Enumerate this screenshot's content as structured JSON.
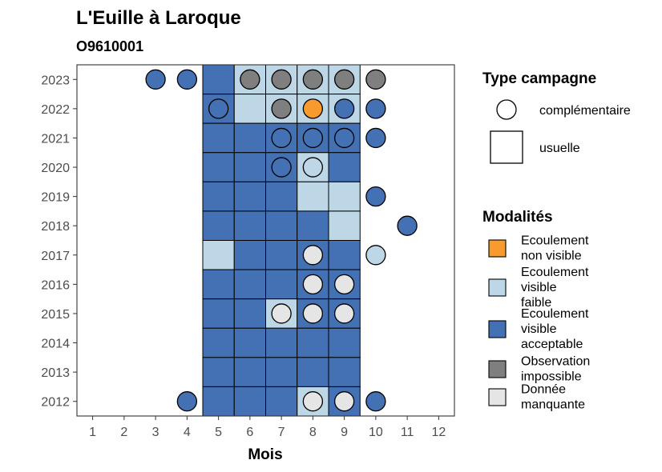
{
  "chart_data": {
    "type": "heatmap",
    "title": "L'Euille à Laroque",
    "subtitle": "O9610001",
    "xlabel": "Mois",
    "ylabel": "",
    "x_ticks": [
      1,
      2,
      3,
      4,
      5,
      6,
      7,
      8,
      9,
      10,
      11,
      12
    ],
    "y_ticks": [
      2012,
      2013,
      2014,
      2015,
      2016,
      2017,
      2018,
      2019,
      2020,
      2021,
      2022,
      2023
    ],
    "xlim": [
      0.5,
      12.5
    ],
    "ylim": [
      2011.5,
      2023.5
    ],
    "grid": false,
    "legend_position": "right",
    "colors": {
      "Ecoulement non visible": "#F89A2E",
      "Ecoulement visible faible": "#BDD7E7",
      "Ecoulement visible acceptable": "#4471B4",
      "Observation impossible": "#7F7F7F",
      "Donnée manquante": "#E5E5E5"
    },
    "legend_type": {
      "title": "Type campagne",
      "items": [
        {
          "label": "complémentaire",
          "shape": "circle"
        },
        {
          "label": "usuelle",
          "shape": "square"
        }
      ]
    },
    "legend_modalites": {
      "title": "Modalités",
      "items": [
        {
          "key": "Ecoulement non visible",
          "lines": [
            "Ecoulement",
            "non visible"
          ]
        },
        {
          "key": "Ecoulement visible faible",
          "lines": [
            "Ecoulement",
            "visible",
            "faible"
          ]
        },
        {
          "key": "Ecoulement visible acceptable",
          "lines": [
            "Ecoulement",
            "visible",
            "acceptable"
          ]
        },
        {
          "key": "Observation impossible",
          "lines": [
            "Observation",
            "impossible"
          ]
        },
        {
          "key": "Donnée manquante",
          "lines": [
            "Donnée",
            "manquante"
          ]
        }
      ]
    },
    "usuelle": [
      {
        "year": 2023,
        "months": [
          5,
          6,
          7,
          8,
          9
        ],
        "values": [
          "Ecoulement visible acceptable",
          "Ecoulement visible faible",
          "Ecoulement visible faible",
          "Ecoulement visible faible",
          "Ecoulement visible faible"
        ]
      },
      {
        "year": 2022,
        "months": [
          5,
          6,
          7,
          8,
          9
        ],
        "values": [
          "Ecoulement visible acceptable",
          "Ecoulement visible faible",
          "Ecoulement visible faible",
          "Ecoulement visible faible",
          "Ecoulement visible faible"
        ]
      },
      {
        "year": 2021,
        "months": [
          5,
          6,
          7,
          8,
          9
        ],
        "values": [
          "Ecoulement visible acceptable",
          "Ecoulement visible acceptable",
          "Ecoulement visible acceptable",
          "Ecoulement visible acceptable",
          "Ecoulement visible acceptable"
        ]
      },
      {
        "year": 2020,
        "months": [
          5,
          6,
          7,
          8,
          9
        ],
        "values": [
          "Ecoulement visible acceptable",
          "Ecoulement visible acceptable",
          "Ecoulement visible acceptable",
          "Ecoulement visible faible",
          "Ecoulement visible acceptable"
        ]
      },
      {
        "year": 2019,
        "months": [
          5,
          6,
          7,
          8,
          9
        ],
        "values": [
          "Ecoulement visible acceptable",
          "Ecoulement visible acceptable",
          "Ecoulement visible acceptable",
          "Ecoulement visible faible",
          "Ecoulement visible faible"
        ]
      },
      {
        "year": 2018,
        "months": [
          5,
          6,
          7,
          8,
          9
        ],
        "values": [
          "Ecoulement visible acceptable",
          "Ecoulement visible acceptable",
          "Ecoulement visible acceptable",
          "Ecoulement visible acceptable",
          "Ecoulement visible faible"
        ]
      },
      {
        "year": 2017,
        "months": [
          5,
          6,
          7,
          8,
          9
        ],
        "values": [
          "Ecoulement visible faible",
          "Ecoulement visible acceptable",
          "Ecoulement visible acceptable",
          "Ecoulement visible acceptable",
          "Ecoulement visible acceptable"
        ]
      },
      {
        "year": 2016,
        "months": [
          5,
          6,
          7,
          8,
          9
        ],
        "values": [
          "Ecoulement visible acceptable",
          "Ecoulement visible acceptable",
          "Ecoulement visible acceptable",
          "Ecoulement visible acceptable",
          "Ecoulement visible acceptable"
        ]
      },
      {
        "year": 2015,
        "months": [
          5,
          6,
          7,
          8,
          9
        ],
        "values": [
          "Ecoulement visible acceptable",
          "Ecoulement visible acceptable",
          "Ecoulement visible faible",
          "Ecoulement visible acceptable",
          "Ecoulement visible acceptable"
        ]
      },
      {
        "year": 2014,
        "months": [
          5,
          6,
          7,
          8,
          9
        ],
        "values": [
          "Ecoulement visible acceptable",
          "Ecoulement visible acceptable",
          "Ecoulement visible acceptable",
          "Ecoulement visible acceptable",
          "Ecoulement visible acceptable"
        ]
      },
      {
        "year": 2013,
        "months": [
          5,
          6,
          7,
          8,
          9
        ],
        "values": [
          "Ecoulement visible acceptable",
          "Ecoulement visible acceptable",
          "Ecoulement visible acceptable",
          "Ecoulement visible acceptable",
          "Ecoulement visible acceptable"
        ]
      },
      {
        "year": 2012,
        "months": [
          5,
          6,
          7,
          8,
          9
        ],
        "values": [
          "Ecoulement visible acceptable",
          "Ecoulement visible acceptable",
          "Ecoulement visible acceptable",
          "Ecoulement visible faible",
          "Ecoulement visible acceptable"
        ]
      }
    ],
    "complementaire": [
      {
        "year": 2023,
        "month": 3,
        "value": "Ecoulement visible acceptable"
      },
      {
        "year": 2023,
        "month": 4,
        "value": "Ecoulement visible acceptable"
      },
      {
        "year": 2023,
        "month": 6,
        "value": "Observation impossible"
      },
      {
        "year": 2023,
        "month": 7,
        "value": "Observation impossible"
      },
      {
        "year": 2023,
        "month": 8,
        "value": "Observation impossible"
      },
      {
        "year": 2023,
        "month": 9,
        "value": "Observation impossible"
      },
      {
        "year": 2023,
        "month": 10,
        "value": "Observation impossible"
      },
      {
        "year": 2022,
        "month": 5,
        "value": "Ecoulement visible acceptable"
      },
      {
        "year": 2022,
        "month": 7,
        "value": "Observation impossible"
      },
      {
        "year": 2022,
        "month": 8,
        "value": "Ecoulement non visible"
      },
      {
        "year": 2022,
        "month": 9,
        "value": "Ecoulement visible acceptable"
      },
      {
        "year": 2022,
        "month": 10,
        "value": "Ecoulement visible acceptable"
      },
      {
        "year": 2021,
        "month": 7,
        "value": "Ecoulement visible acceptable"
      },
      {
        "year": 2021,
        "month": 8,
        "value": "Ecoulement visible acceptable"
      },
      {
        "year": 2021,
        "month": 9,
        "value": "Ecoulement visible acceptable"
      },
      {
        "year": 2021,
        "month": 10,
        "value": "Ecoulement visible acceptable"
      },
      {
        "year": 2020,
        "month": 7,
        "value": "Ecoulement visible acceptable"
      },
      {
        "year": 2020,
        "month": 8,
        "value": "Ecoulement visible faible"
      },
      {
        "year": 2019,
        "month": 10,
        "value": "Ecoulement visible acceptable"
      },
      {
        "year": 2018,
        "month": 11,
        "value": "Ecoulement visible acceptable"
      },
      {
        "year": 2017,
        "month": 8,
        "value": "Donnée manquante"
      },
      {
        "year": 2017,
        "month": 10,
        "value": "Ecoulement visible faible"
      },
      {
        "year": 2016,
        "month": 8,
        "value": "Donnée manquante"
      },
      {
        "year": 2016,
        "month": 9,
        "value": "Donnée manquante"
      },
      {
        "year": 2015,
        "month": 7,
        "value": "Donnée manquante"
      },
      {
        "year": 2015,
        "month": 8,
        "value": "Donnée manquante"
      },
      {
        "year": 2015,
        "month": 9,
        "value": "Donnée manquante"
      },
      {
        "year": 2012,
        "month": 4,
        "value": "Ecoulement visible acceptable"
      },
      {
        "year": 2012,
        "month": 8,
        "value": "Donnée manquante"
      },
      {
        "year": 2012,
        "month": 9,
        "value": "Donnée manquante"
      },
      {
        "year": 2012,
        "month": 10,
        "value": "Ecoulement visible acceptable"
      }
    ]
  }
}
